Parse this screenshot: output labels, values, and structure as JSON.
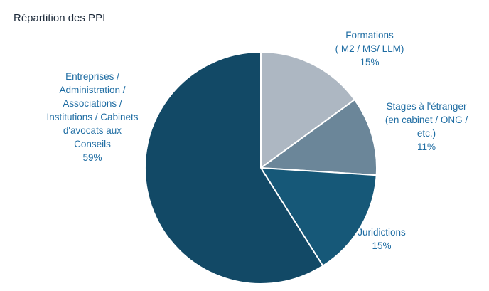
{
  "chart_data": {
    "type": "pie",
    "title": "Répartition des PPI",
    "slices": [
      {
        "label_lines": [
          "Formations",
          "( M2 / MS/ LLM)"
        ],
        "value_label": "15%",
        "value": 15,
        "color": "#adb7c2"
      },
      {
        "label_lines": [
          "Stages à l'étranger",
          "(en cabinet / ONG /",
          "etc.)"
        ],
        "value_label": "11%",
        "value": 11,
        "color": "#6b8699"
      },
      {
        "label_lines": [
          "Juridictions"
        ],
        "value_label": "15%",
        "value": 15,
        "color": "#165878"
      },
      {
        "label_lines": [
          "Entreprises /",
          "Administration /",
          "Associations /",
          "Institutions / Cabinets",
          "d'avocats aux",
          "Conseils"
        ],
        "value_label": "59%",
        "value": 59,
        "color": "#124966"
      }
    ],
    "start_angle_deg": 0,
    "direction": "clockwise",
    "legend": "none",
    "border_color": "#ffffff"
  }
}
